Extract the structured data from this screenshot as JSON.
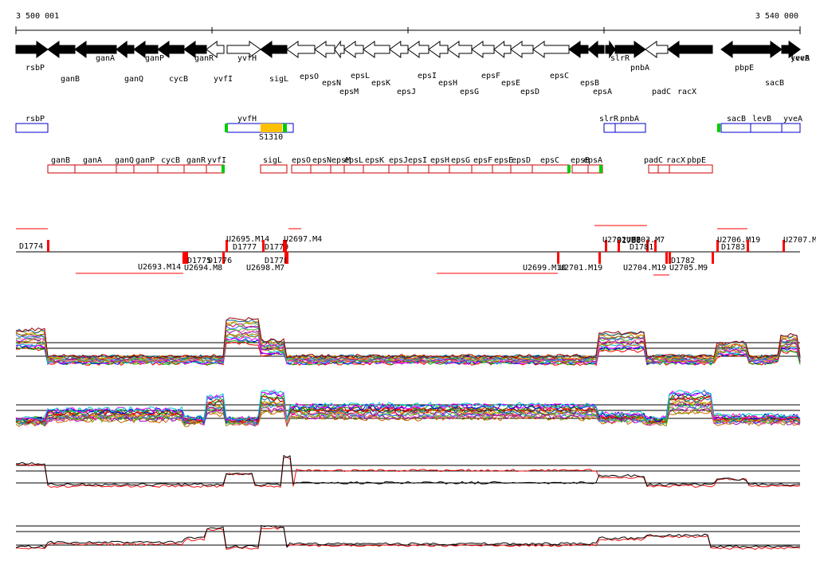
{
  "axis": {
    "start_label": "3 500 001",
    "end_label": "3 540 000"
  },
  "colors": {
    "gene_fill": "#000000",
    "gene_outline": "#000000",
    "operon_box": "#0000cc",
    "transcript_box": "#cc0000",
    "terminator": "#00cc00",
    "feature_highlight": "#ffc000",
    "segment_marker": "#ff0000",
    "line_black": "#000000",
    "line_red": "#ee1111"
  },
  "genes": [
    {
      "name": "rsbP",
      "strand": "+",
      "filled": true
    },
    {
      "name": "ganB",
      "strand": "-",
      "filled": true
    },
    {
      "name": "ganA",
      "strand": "-",
      "filled": true
    },
    {
      "name": "ganQ",
      "strand": "-",
      "filled": true
    },
    {
      "name": "ganP",
      "strand": "-",
      "filled": true
    },
    {
      "name": "cycB",
      "strand": "-",
      "filled": true
    },
    {
      "name": "ganR",
      "strand": "-",
      "filled": true
    },
    {
      "name": "yvfI",
      "strand": "-",
      "filled": false
    },
    {
      "name": "yvfH",
      "strand": "+",
      "filled": false
    },
    {
      "name": "sigL",
      "strand": "-",
      "filled": true
    },
    {
      "name": "epsO",
      "strand": "-",
      "filled": false
    },
    {
      "name": "epsN",
      "strand": "-",
      "filled": false
    },
    {
      "name": "epsM",
      "strand": "-",
      "filled": false
    },
    {
      "name": "epsL",
      "strand": "-",
      "filled": false
    },
    {
      "name": "epsK",
      "strand": "-",
      "filled": false
    },
    {
      "name": "epsJ",
      "strand": "-",
      "filled": false
    },
    {
      "name": "epsI",
      "strand": "-",
      "filled": false
    },
    {
      "name": "epsH",
      "strand": "-",
      "filled": false
    },
    {
      "name": "epsG",
      "strand": "-",
      "filled": false
    },
    {
      "name": "epsF",
      "strand": "-",
      "filled": false
    },
    {
      "name": "epsE",
      "strand": "-",
      "filled": false
    },
    {
      "name": "epsD",
      "strand": "-",
      "filled": false
    },
    {
      "name": "epsC",
      "strand": "-",
      "filled": false
    },
    {
      "name": "epsB",
      "strand": "-",
      "filled": true
    },
    {
      "name": "epsA",
      "strand": "-",
      "filled": true
    },
    {
      "name": "slrR",
      "strand": "+",
      "filled": true
    },
    {
      "name": "pnbA",
      "strand": "+",
      "filled": true
    },
    {
      "name": "padC",
      "strand": "-",
      "filled": false
    },
    {
      "name": "racX",
      "strand": "-",
      "filled": true
    },
    {
      "name": "pbpE",
      "strand": "-",
      "filled": true
    },
    {
      "name": "sacB",
      "strand": "+",
      "filled": true
    },
    {
      "name": "levB",
      "strand": "+",
      "filled": true
    },
    {
      "name": "yveA",
      "strand": "+",
      "filled": true
    }
  ],
  "operons": [
    {
      "label": "rsbP"
    },
    {
      "label": "yvfH"
    },
    {
      "label": "slrR"
    },
    {
      "label": "pnbA"
    },
    {
      "label": "sacB"
    },
    {
      "label": "levB"
    },
    {
      "label": "yveA"
    }
  ],
  "operon_feature_label": "S1310",
  "transcripts": [
    {
      "label": "ganB"
    },
    {
      "label": "ganA"
    },
    {
      "label": "ganQ"
    },
    {
      "label": "ganP"
    },
    {
      "label": "cycB"
    },
    {
      "label": "ganR"
    },
    {
      "label": "yvfI"
    },
    {
      "label": "sigL"
    },
    {
      "label": "epsO"
    },
    {
      "label": "epsN"
    },
    {
      "label": "epsM"
    },
    {
      "label": "epsL"
    },
    {
      "label": "epsK"
    },
    {
      "label": "epsJ"
    },
    {
      "label": "epsI"
    },
    {
      "label": "epsH"
    },
    {
      "label": "epsG"
    },
    {
      "label": "epsF"
    },
    {
      "label": "epsE"
    },
    {
      "label": "epsD"
    },
    {
      "label": "epsC"
    },
    {
      "label": "epsB"
    },
    {
      "label": "epsA"
    },
    {
      "label": "padC"
    },
    {
      "label": "racX"
    },
    {
      "label": "pbpE"
    }
  ],
  "segments": [
    {
      "label": "D1774"
    },
    {
      "label": "U2693.M14"
    },
    {
      "label": "D1775"
    },
    {
      "label": "U2694.M8"
    },
    {
      "label": "D1776"
    },
    {
      "label": "U2695.M14"
    },
    {
      "label": "D1777"
    },
    {
      "label": "D1779"
    },
    {
      "label": "U2697.M4"
    },
    {
      "label": "D1778"
    },
    {
      "label": "U2698.M7"
    },
    {
      "label": "U2699.M10"
    },
    {
      "label": "U2701.M19"
    },
    {
      "label": "U2702.M8"
    },
    {
      "label": "D1780"
    },
    {
      "label": "D1781"
    },
    {
      "label": "U2703.M7"
    },
    {
      "label": "U2704.M19"
    },
    {
      "label": "D1782"
    },
    {
      "label": "U2705.M9"
    },
    {
      "label": "U2706.M19"
    },
    {
      "label": "D1783"
    },
    {
      "label": "U2707.M"
    }
  ]
}
